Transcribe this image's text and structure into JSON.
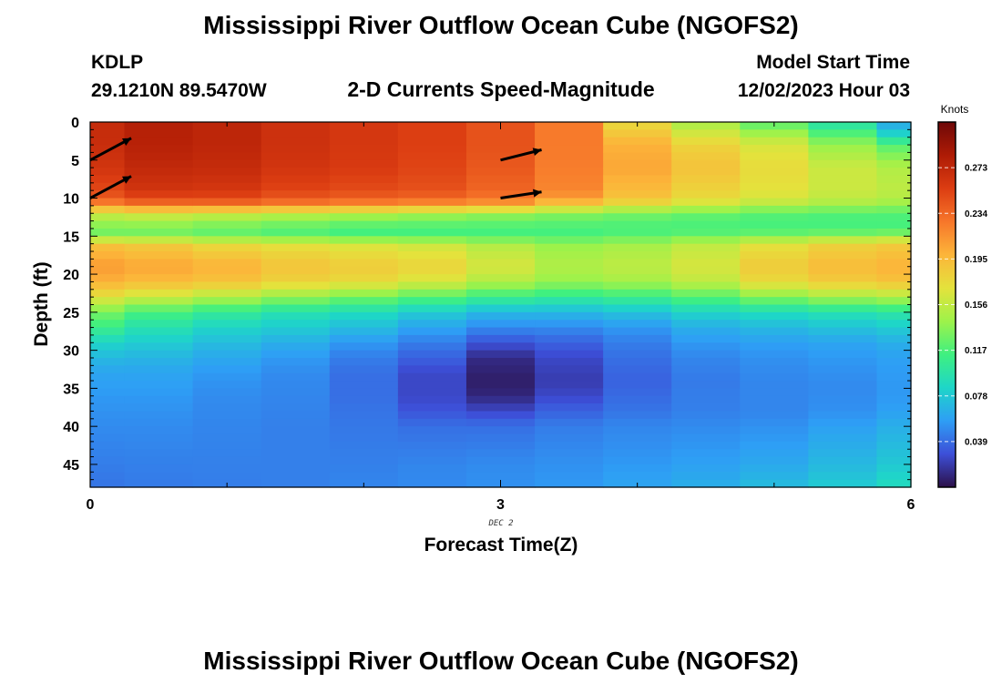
{
  "title": "Mississippi River Outflow Ocean Cube (NGOFS2)",
  "title_bottom": "Mississippi River Outflow Ocean Cube (NGOFS2)",
  "station": {
    "id": "KDLP",
    "coords": "29.1210N  89.5470W"
  },
  "subtitle": "2-D Currents Speed-Magnitude",
  "model_start": {
    "label": "Model Start Time",
    "value": "12/02/2023 Hour 03"
  },
  "chart_data": {
    "type": "heatmap",
    "title": "2-D Currents Speed-Magnitude",
    "xlabel": "Forecast Time(Z)",
    "ylabel": "Depth (ft)",
    "x_date_label": "DEC 2",
    "xlim": [
      0,
      6
    ],
    "ylim": [
      48,
      0
    ],
    "x_ticks": [
      0,
      3,
      6
    ],
    "y_ticks": [
      0,
      5,
      10,
      15,
      20,
      25,
      30,
      35,
      40,
      45
    ],
    "x_centers": [
      0,
      0.5,
      1,
      1.5,
      2,
      2.5,
      3,
      3.5,
      4,
      4.5,
      5,
      5.5,
      6
    ],
    "depth_profiles": [
      [
        [
          0,
          0.27
        ],
        [
          3,
          0.268
        ],
        [
          6,
          0.262
        ],
        [
          9,
          0.25
        ],
        [
          10,
          0.24
        ],
        [
          11,
          0.215
        ],
        [
          12,
          0.16
        ],
        [
          14,
          0.13
        ],
        [
          15,
          0.13
        ],
        [
          16,
          0.19
        ],
        [
          19,
          0.21
        ],
        [
          21,
          0.2
        ],
        [
          23,
          0.17
        ],
        [
          25,
          0.13
        ],
        [
          27,
          0.11
        ],
        [
          29,
          0.085
        ],
        [
          31,
          0.07
        ],
        [
          33,
          0.06
        ],
        [
          36,
          0.055
        ],
        [
          40,
          0.05
        ],
        [
          45,
          0.045
        ],
        [
          48,
          0.042
        ]
      ],
      [
        [
          0,
          0.28
        ],
        [
          3,
          0.278
        ],
        [
          6,
          0.272
        ],
        [
          9,
          0.262
        ],
        [
          10,
          0.25
        ],
        [
          11,
          0.225
        ],
        [
          12,
          0.165
        ],
        [
          14,
          0.13
        ],
        [
          15,
          0.13
        ],
        [
          16,
          0.185
        ],
        [
          19,
          0.205
        ],
        [
          21,
          0.195
        ],
        [
          23,
          0.16
        ],
        [
          25,
          0.115
        ],
        [
          27,
          0.095
        ],
        [
          29,
          0.08
        ],
        [
          31,
          0.068
        ],
        [
          33,
          0.06
        ],
        [
          36,
          0.055
        ],
        [
          40,
          0.05
        ],
        [
          45,
          0.046
        ],
        [
          48,
          0.044
        ]
      ],
      [
        [
          0,
          0.275
        ],
        [
          3,
          0.274
        ],
        [
          6,
          0.27
        ],
        [
          9,
          0.26
        ],
        [
          10,
          0.25
        ],
        [
          11,
          0.225
        ],
        [
          12,
          0.16
        ],
        [
          14,
          0.125
        ],
        [
          15,
          0.125
        ],
        [
          16,
          0.175
        ],
        [
          19,
          0.2
        ],
        [
          21,
          0.19
        ],
        [
          23,
          0.15
        ],
        [
          25,
          0.105
        ],
        [
          27,
          0.085
        ],
        [
          29,
          0.072
        ],
        [
          31,
          0.062
        ],
        [
          33,
          0.055
        ],
        [
          36,
          0.05
        ],
        [
          40,
          0.048
        ],
        [
          45,
          0.046
        ],
        [
          48,
          0.045
        ]
      ],
      [
        [
          0,
          0.265
        ],
        [
          3,
          0.265
        ],
        [
          6,
          0.262
        ],
        [
          9,
          0.252
        ],
        [
          10,
          0.242
        ],
        [
          11,
          0.22
        ],
        [
          12,
          0.155
        ],
        [
          14,
          0.12
        ],
        [
          15,
          0.12
        ],
        [
          16,
          0.17
        ],
        [
          19,
          0.19
        ],
        [
          21,
          0.18
        ],
        [
          23,
          0.14
        ],
        [
          25,
          0.095
        ],
        [
          27,
          0.08
        ],
        [
          29,
          0.065
        ],
        [
          31,
          0.055
        ],
        [
          33,
          0.05
        ],
        [
          36,
          0.048
        ],
        [
          40,
          0.046
        ],
        [
          45,
          0.046
        ],
        [
          48,
          0.046
        ]
      ],
      [
        [
          0,
          0.26
        ],
        [
          3,
          0.26
        ],
        [
          6,
          0.258
        ],
        [
          9,
          0.248
        ],
        [
          10,
          0.238
        ],
        [
          11,
          0.215
        ],
        [
          12,
          0.15
        ],
        [
          14,
          0.115
        ],
        [
          15,
          0.115
        ],
        [
          16,
          0.165
        ],
        [
          19,
          0.185
        ],
        [
          21,
          0.175
        ],
        [
          23,
          0.13
        ],
        [
          25,
          0.09
        ],
        [
          27,
          0.072
        ],
        [
          29,
          0.055
        ],
        [
          31,
          0.045
        ],
        [
          33,
          0.04
        ],
        [
          36,
          0.04
        ],
        [
          40,
          0.043
        ],
        [
          45,
          0.046
        ],
        [
          48,
          0.048
        ]
      ],
      [
        [
          0,
          0.255
        ],
        [
          3,
          0.255
        ],
        [
          6,
          0.252
        ],
        [
          9,
          0.245
        ],
        [
          10,
          0.235
        ],
        [
          11,
          0.21
        ],
        [
          12,
          0.145
        ],
        [
          14,
          0.115
        ],
        [
          15,
          0.115
        ],
        [
          16,
          0.16
        ],
        [
          19,
          0.18
        ],
        [
          21,
          0.165
        ],
        [
          23,
          0.12
        ],
        [
          25,
          0.08
        ],
        [
          27,
          0.06
        ],
        [
          29,
          0.045
        ],
        [
          31,
          0.035
        ],
        [
          33,
          0.025
        ],
        [
          36,
          0.025
        ],
        [
          38,
          0.03
        ],
        [
          40,
          0.04
        ],
        [
          45,
          0.048
        ],
        [
          48,
          0.05
        ]
      ],
      [
        [
          0,
          0.245
        ],
        [
          3,
          0.245
        ],
        [
          6,
          0.242
        ],
        [
          9,
          0.235
        ],
        [
          10,
          0.228
        ],
        [
          11,
          0.205
        ],
        [
          12,
          0.14
        ],
        [
          14,
          0.115
        ],
        [
          15,
          0.115
        ],
        [
          16,
          0.15
        ],
        [
          19,
          0.165
        ],
        [
          21,
          0.15
        ],
        [
          23,
          0.11
        ],
        [
          25,
          0.07
        ],
        [
          27,
          0.05
        ],
        [
          29,
          0.03
        ],
        [
          31,
          0.012
        ],
        [
          34,
          0.006
        ],
        [
          36,
          0.01
        ],
        [
          38,
          0.025
        ],
        [
          40,
          0.04
        ],
        [
          45,
          0.05
        ],
        [
          48,
          0.052
        ]
      ],
      [
        [
          0,
          0.225
        ],
        [
          3,
          0.225
        ],
        [
          6,
          0.224
        ],
        [
          9,
          0.22
        ],
        [
          10,
          0.21
        ],
        [
          11,
          0.185
        ],
        [
          12,
          0.135
        ],
        [
          14,
          0.115
        ],
        [
          15,
          0.115
        ],
        [
          16,
          0.14
        ],
        [
          19,
          0.15
        ],
        [
          21,
          0.14
        ],
        [
          23,
          0.105
        ],
        [
          25,
          0.07
        ],
        [
          27,
          0.05
        ],
        [
          29,
          0.035
        ],
        [
          31,
          0.025
        ],
        [
          34,
          0.02
        ],
        [
          36,
          0.025
        ],
        [
          38,
          0.035
        ],
        [
          40,
          0.045
        ],
        [
          45,
          0.052
        ],
        [
          48,
          0.055
        ]
      ],
      [
        [
          0,
          0.175
        ],
        [
          3,
          0.2
        ],
        [
          6,
          0.205
        ],
        [
          9,
          0.195
        ],
        [
          10,
          0.19
        ],
        [
          11,
          0.17
        ],
        [
          12,
          0.13
        ],
        [
          14,
          0.115
        ],
        [
          15,
          0.12
        ],
        [
          16,
          0.145
        ],
        [
          19,
          0.155
        ],
        [
          21,
          0.145
        ],
        [
          23,
          0.11
        ],
        [
          25,
          0.075
        ],
        [
          27,
          0.055
        ],
        [
          29,
          0.045
        ],
        [
          31,
          0.04
        ],
        [
          34,
          0.035
        ],
        [
          36,
          0.038
        ],
        [
          38,
          0.042
        ],
        [
          40,
          0.048
        ],
        [
          45,
          0.055
        ],
        [
          48,
          0.06
        ]
      ],
      [
        [
          0,
          0.145
        ],
        [
          3,
          0.18
        ],
        [
          6,
          0.19
        ],
        [
          9,
          0.18
        ],
        [
          10,
          0.175
        ],
        [
          11,
          0.16
        ],
        [
          12,
          0.125
        ],
        [
          14,
          0.115
        ],
        [
          15,
          0.125
        ],
        [
          16,
          0.155
        ],
        [
          19,
          0.165
        ],
        [
          21,
          0.155
        ],
        [
          23,
          0.12
        ],
        [
          25,
          0.085
        ],
        [
          27,
          0.065
        ],
        [
          29,
          0.055
        ],
        [
          31,
          0.048
        ],
        [
          34,
          0.044
        ],
        [
          36,
          0.045
        ],
        [
          38,
          0.046
        ],
        [
          40,
          0.05
        ],
        [
          45,
          0.058
        ],
        [
          48,
          0.065
        ]
      ],
      [
        [
          0,
          0.12
        ],
        [
          3,
          0.165
        ],
        [
          6,
          0.175
        ],
        [
          9,
          0.17
        ],
        [
          10,
          0.165
        ],
        [
          11,
          0.15
        ],
        [
          12,
          0.12
        ],
        [
          14,
          0.115
        ],
        [
          15,
          0.13
        ],
        [
          16,
          0.17
        ],
        [
          19,
          0.185
        ],
        [
          21,
          0.175
        ],
        [
          23,
          0.135
        ],
        [
          25,
          0.09
        ],
        [
          27,
          0.07
        ],
        [
          29,
          0.058
        ],
        [
          31,
          0.052
        ],
        [
          34,
          0.048
        ],
        [
          36,
          0.048
        ],
        [
          38,
          0.048
        ],
        [
          40,
          0.052
        ],
        [
          45,
          0.062
        ],
        [
          48,
          0.072
        ]
      ],
      [
        [
          0,
          0.095
        ],
        [
          3,
          0.14
        ],
        [
          6,
          0.16
        ],
        [
          9,
          0.16
        ],
        [
          10,
          0.155
        ],
        [
          11,
          0.145
        ],
        [
          12,
          0.118
        ],
        [
          14,
          0.115
        ],
        [
          15,
          0.135
        ],
        [
          16,
          0.18
        ],
        [
          19,
          0.195
        ],
        [
          21,
          0.185
        ],
        [
          23,
          0.145
        ],
        [
          25,
          0.095
        ],
        [
          27,
          0.075
        ],
        [
          29,
          0.06
        ],
        [
          31,
          0.055
        ],
        [
          34,
          0.05
        ],
        [
          36,
          0.05
        ],
        [
          38,
          0.052
        ],
        [
          40,
          0.058
        ],
        [
          45,
          0.07
        ],
        [
          48,
          0.08
        ]
      ],
      [
        [
          0,
          0.06
        ],
        [
          2,
          0.09
        ],
        [
          3,
          0.12
        ],
        [
          6,
          0.15
        ],
        [
          9,
          0.155
        ],
        [
          10,
          0.15
        ],
        [
          11,
          0.14
        ],
        [
          12,
          0.118
        ],
        [
          14,
          0.115
        ],
        [
          15,
          0.14
        ],
        [
          16,
          0.185
        ],
        [
          19,
          0.2
        ],
        [
          21,
          0.19
        ],
        [
          23,
          0.15
        ],
        [
          25,
          0.1
        ],
        [
          27,
          0.08
        ],
        [
          29,
          0.065
        ],
        [
          31,
          0.058
        ],
        [
          34,
          0.055
        ],
        [
          36,
          0.055
        ],
        [
          38,
          0.058
        ],
        [
          40,
          0.065
        ],
        [
          45,
          0.078
        ],
        [
          48,
          0.09
        ]
      ]
    ],
    "vectors": [
      {
        "x": 0,
        "depth": 5,
        "dx": 0.3,
        "dy": 0.16
      },
      {
        "x": 0,
        "depth": 10,
        "dx": 0.3,
        "dy": 0.16
      },
      {
        "x": 3,
        "depth": 5,
        "dx": 0.3,
        "dy": 0.075
      },
      {
        "x": 3,
        "depth": 10,
        "dx": 0.3,
        "dy": 0.045
      }
    ],
    "colorbar": {
      "label": "Knots",
      "min": 0,
      "max": 0.312,
      "tick_values": [
        0.039,
        0.078,
        0.117,
        0.156,
        0.195,
        0.234,
        0.273
      ],
      "tick_labels": [
        "0.039",
        "0.078",
        "0.117",
        "0.156",
        "0.195",
        "0.234",
        "0.273"
      ],
      "colors": [
        "#2c1048",
        "#3d4fd8",
        "#2e9ef5",
        "#1ed6c8",
        "#3ff080",
        "#9ef24a",
        "#e4e23c",
        "#fcb53a",
        "#f7762a",
        "#dc3d12",
        "#ae1b05",
        "#6e0808"
      ]
    }
  }
}
